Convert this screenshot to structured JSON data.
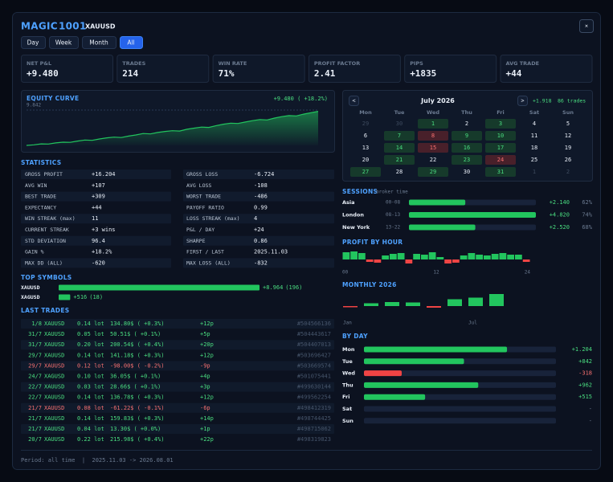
{
  "header": {
    "title": "MAGIC",
    "magic": "1001",
    "symbol": "XAUUSD",
    "close": "×"
  },
  "tabs": {
    "items": [
      "Day",
      "Week",
      "Month",
      "All"
    ],
    "active": 3
  },
  "kpis": [
    {
      "label": "NET P&L",
      "value": "+9.480"
    },
    {
      "label": "TRADES",
      "value": "214"
    },
    {
      "label": "WIN RATE",
      "value": "71%"
    },
    {
      "label": "PROFIT FACTOR",
      "value": "2.41"
    },
    {
      "label": "PIPS",
      "value": "+1835"
    },
    {
      "label": "AVG TRADE",
      "value": "+44"
    }
  ],
  "equity_curve": {
    "title": "EQUITY CURVE",
    "summary": "+9.480 ( +18.2%)",
    "chart_data": {
      "type": "area",
      "values": [
        0,
        150,
        420,
        380,
        700,
        900,
        850,
        1200,
        1500,
        1400,
        1800,
        2100,
        2300,
        2200,
        2600,
        2900,
        3300,
        3200,
        3600,
        3900,
        4100,
        4000,
        4500,
        4800,
        5100,
        5000,
        5500,
        5900,
        6200,
        6100,
        6500,
        6900,
        7200,
        7100,
        7600,
        8000,
        8300,
        8200,
        8700,
        9100,
        9480
      ],
      "ylim": [
        0,
        9842
      ],
      "yticks": [
        {
          "value": 9842,
          "label": "9.842"
        }
      ],
      "color": "#22c55e"
    }
  },
  "calendar": {
    "title": "July 2026",
    "prev": "<",
    "next": ">",
    "total": "+1.918",
    "trades": "86 trades",
    "weekdays": [
      "Mon",
      "Tue",
      "Wed",
      "Thu",
      "Fri",
      "Sat",
      "Sun"
    ],
    "days": [
      {
        "day": 29,
        "state": "out"
      },
      {
        "day": 30,
        "state": "out"
      },
      {
        "day": 1,
        "state": "win"
      },
      {
        "day": 2,
        "state": "none"
      },
      {
        "day": 3,
        "state": "win"
      },
      {
        "day": 4,
        "state": "none"
      },
      {
        "day": 5,
        "state": "none"
      },
      {
        "day": 6,
        "state": "none"
      },
      {
        "day": 7,
        "state": "win"
      },
      {
        "day": 8,
        "state": "loss"
      },
      {
        "day": 9,
        "state": "win"
      },
      {
        "day": 10,
        "state": "win"
      },
      {
        "day": 11,
        "state": "none"
      },
      {
        "day": 12,
        "state": "none"
      },
      {
        "day": 13,
        "state": "none"
      },
      {
        "day": 14,
        "state": "win"
      },
      {
        "day": 15,
        "state": "loss"
      },
      {
        "day": 16,
        "state": "win"
      },
      {
        "day": 17,
        "state": "win"
      },
      {
        "day": 18,
        "state": "none"
      },
      {
        "day": 19,
        "state": "none"
      },
      {
        "day": 20,
        "state": "none"
      },
      {
        "day": 21,
        "state": "win"
      },
      {
        "day": 22,
        "state": "none"
      },
      {
        "day": 23,
        "state": "win"
      },
      {
        "day": 24,
        "state": "loss"
      },
      {
        "day": 25,
        "state": "none"
      },
      {
        "day": 26,
        "state": "none"
      },
      {
        "day": 27,
        "state": "win"
      },
      {
        "day": 28,
        "state": "none"
      },
      {
        "day": 29,
        "state": "win"
      },
      {
        "day": 30,
        "state": "none"
      },
      {
        "day": 31,
        "state": "win"
      },
      {
        "day": 1,
        "state": "out"
      },
      {
        "day": 2,
        "state": "out"
      }
    ]
  },
  "statistics": {
    "title": "STATISTICS",
    "rows": [
      [
        "GROSS PROFIT",
        "+16.204",
        "GROSS LOSS",
        "-6.724"
      ],
      [
        "AVG WIN",
        "+107",
        "AVG LOSS",
        "-108"
      ],
      [
        "BEST TRADE",
        "+309",
        "WORST TRADE",
        "-486"
      ],
      [
        "EXPECTANCY",
        "+44",
        "PAYOFF RATIO",
        "0.99"
      ],
      [
        "WIN STREAK (max)",
        "11",
        "LOSS STREAK (max)",
        "4"
      ],
      [
        "CURRENT STREAK",
        "+3 wins",
        "P&L / DAY",
        "+24"
      ],
      [
        "STD DEVIATION",
        "96.4",
        "SHARPE",
        "0.86"
      ],
      [
        "GAIN %",
        "+18.2%",
        "FIRST / LAST",
        "2025.11.03"
      ],
      [
        "MAX DD (ALL)",
        "-620",
        "MAX LOSS (ALL)",
        "-832"
      ]
    ]
  },
  "top_symbols": {
    "title": "TOP SYMBOLS",
    "chart_data": {
      "type": "bar",
      "orientation": "horizontal",
      "categories": [
        "XAUUSD",
        "XAGUSD"
      ],
      "values": [
        8964,
        516
      ],
      "value_labels": [
        "+8.964",
        "+516"
      ],
      "trade_counts": [
        "(196)",
        "(18)"
      ],
      "xlim": [
        0,
        8964
      ],
      "color": "#22c55e"
    }
  },
  "last_trades": {
    "title": "LAST TRADES",
    "rows": [
      [
        "1/8",
        "XAUUSD",
        "0.14 lot",
        "134.80$ ( +0.3%)",
        "+12p",
        "#504566136"
      ],
      [
        "31/7",
        "XAUUSD",
        "0.05 lot",
        "50.51$ ( +0.1%)",
        "+5p",
        "#504443617"
      ],
      [
        "31/7",
        "XAUUSD",
        "0.20 lot",
        "200.54$ ( +0.4%)",
        "+20p",
        "#504407013"
      ],
      [
        "29/7",
        "XAUUSD",
        "0.14 lot",
        "141.18$ ( +0.3%)",
        "+12p",
        "#503696427"
      ],
      [
        "29/7",
        "XAUUSD",
        "0.12 lot",
        "-98.00$ ( -0.2%)",
        "-9p",
        "#503669574"
      ],
      [
        "24/7",
        "XAGUSD",
        "0.10 lot",
        "36.05$ ( +0.1%)",
        "+4p",
        "#501075441"
      ],
      [
        "22/7",
        "XAUUSD",
        "0.03 lot",
        "28.66$ ( +0.1%)",
        "+3p",
        "#499630144"
      ],
      [
        "22/7",
        "XAUUSD",
        "0.14 lot",
        "136.78$ ( +0.3%)",
        "+12p",
        "#499562254"
      ],
      [
        "21/7",
        "XAUUSD",
        "0.08 lot",
        "-61.22$ ( -0.1%)",
        "-6p",
        "#498412319"
      ],
      [
        "21/7",
        "XAUUSD",
        "0.14 lot",
        "159.83$ ( +0.3%)",
        "+14p",
        "#498744425"
      ],
      [
        "21/7",
        "XAUUSD",
        "0.04 lot",
        "13.30$ ( +0.0%)",
        "+1p",
        "#498715062"
      ],
      [
        "20/7",
        "XAUUSD",
        "0.22 lot",
        "215.98$ ( +0.4%)",
        "+22p",
        "#498319823"
      ]
    ]
  },
  "sessions": {
    "title": "SESSIONS",
    "note": "broker time",
    "chart_data": {
      "type": "bar",
      "orientation": "horizontal",
      "categories": [
        "Asia",
        "London",
        "New York"
      ],
      "hours": [
        "00-08",
        "08-13",
        "13-22"
      ],
      "values": [
        2140,
        4820,
        2520
      ],
      "value_labels": [
        "+2.140",
        "+4.820",
        "+2.520"
      ],
      "win_rates": [
        "62%",
        "74%",
        "68%"
      ],
      "xlim": [
        0,
        4820
      ],
      "color": "#22c55e"
    }
  },
  "profit_by_hour": {
    "title": "PROFIT BY HOUR",
    "chart_data": {
      "type": "bar",
      "x": [
        0,
        1,
        2,
        3,
        4,
        5,
        6,
        7,
        8,
        9,
        10,
        11,
        12,
        13,
        14,
        15,
        16,
        17,
        18,
        19,
        20,
        21,
        22,
        23
      ],
      "values": [
        9,
        10,
        8,
        -3,
        -4,
        5,
        7,
        8,
        -5,
        7,
        6,
        9,
        3,
        -5,
        -4,
        5,
        8,
        6,
        5,
        7,
        8,
        6,
        6,
        -3
      ],
      "xlim": [
        0,
        24
      ],
      "ylim": [
        -10,
        11
      ],
      "xticks": [
        {
          "value": 0,
          "label": "00"
        },
        12,
        24
      ],
      "colors": {
        "positive": "#22c55e",
        "negative": "#ef4444"
      }
    }
  },
  "monthly": {
    "title": "MONTHLY 2026",
    "chart_data": {
      "type": "bar",
      "categories": [
        "Jan",
        null,
        null,
        null,
        null,
        null,
        "Jul",
        null,
        null,
        null,
        null,
        null
      ],
      "values": [
        -150,
        350,
        500,
        450,
        -200,
        850,
        1050,
        1500,
        null,
        null,
        null,
        null
      ],
      "ylim": [
        -300,
        1600
      ],
      "colors": {
        "positive": "#22c55e",
        "negative": "#ef4444"
      }
    }
  },
  "by_day": {
    "title": "BY DAY",
    "chart_data": {
      "type": "bar",
      "orientation": "horizontal",
      "categories": [
        "Mon",
        "Tue",
        "Wed",
        "Thu",
        "Fri",
        "Sat",
        "Sun"
      ],
      "values": [
        1204,
        842,
        -318,
        962,
        515,
        null,
        null
      ],
      "value_labels": [
        "+1.204",
        "+842",
        "-318",
        "+962",
        "+515",
        "-",
        "-"
      ],
      "xlim": [
        0,
        1616
      ],
      "colors": {
        "positive": "#22c55e",
        "negative": "#ef4444"
      }
    }
  },
  "footer": {
    "text": "Period: all time  |  2025.11.03 -> 2026.08.01"
  }
}
